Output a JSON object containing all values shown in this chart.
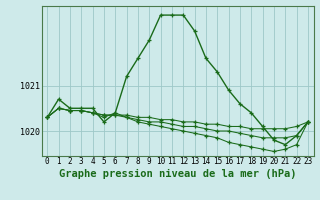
{
  "title": "Graphe pression niveau de la mer (hPa)",
  "background_color": "#ceeaea",
  "plot_bg_color": "#ceeaea",
  "grid_color": "#9ec8c8",
  "line_color": "#1a6b1a",
  "x_labels": [
    "0",
    "1",
    "2",
    "3",
    "4",
    "5",
    "6",
    "7",
    "8",
    "9",
    "10",
    "11",
    "12",
    "13",
    "14",
    "15",
    "16",
    "17",
    "18",
    "19",
    "20",
    "21",
    "22",
    "23"
  ],
  "ylim": [
    1019.45,
    1022.75
  ],
  "yticks": [
    1020,
    1021
  ],
  "series": [
    [
      1020.3,
      1020.7,
      1020.5,
      1020.5,
      1020.5,
      1020.2,
      1020.4,
      1021.2,
      1021.6,
      1022.0,
      1022.55,
      1022.55,
      1022.55,
      1022.2,
      1021.6,
      1021.3,
      1020.9,
      1020.6,
      1020.4,
      1020.1,
      1019.8,
      1019.7,
      1019.9,
      1020.2
    ],
    [
      1020.3,
      1020.5,
      1020.45,
      1020.45,
      1020.4,
      1020.35,
      1020.35,
      1020.35,
      1020.3,
      1020.3,
      1020.25,
      1020.25,
      1020.2,
      1020.2,
      1020.15,
      1020.15,
      1020.1,
      1020.1,
      1020.05,
      1020.05,
      1020.05,
      1020.05,
      1020.1,
      1020.2
    ],
    [
      1020.3,
      1020.5,
      1020.45,
      1020.45,
      1020.4,
      1020.35,
      1020.35,
      1020.3,
      1020.25,
      1020.2,
      1020.2,
      1020.15,
      1020.1,
      1020.1,
      1020.05,
      1020.0,
      1020.0,
      1019.95,
      1019.9,
      1019.85,
      1019.85,
      1019.85,
      1019.9,
      1020.2
    ],
    [
      1020.3,
      1020.5,
      1020.45,
      1020.45,
      1020.4,
      1020.3,
      1020.4,
      1020.3,
      1020.2,
      1020.15,
      1020.1,
      1020.05,
      1020.0,
      1019.95,
      1019.9,
      1019.85,
      1019.75,
      1019.7,
      1019.65,
      1019.6,
      1019.55,
      1019.6,
      1019.7,
      1020.2
    ]
  ],
  "marker_size": 3.5,
  "line_width": 1.0,
  "title_fontsize": 7.5,
  "tick_fontsize": 5.5
}
